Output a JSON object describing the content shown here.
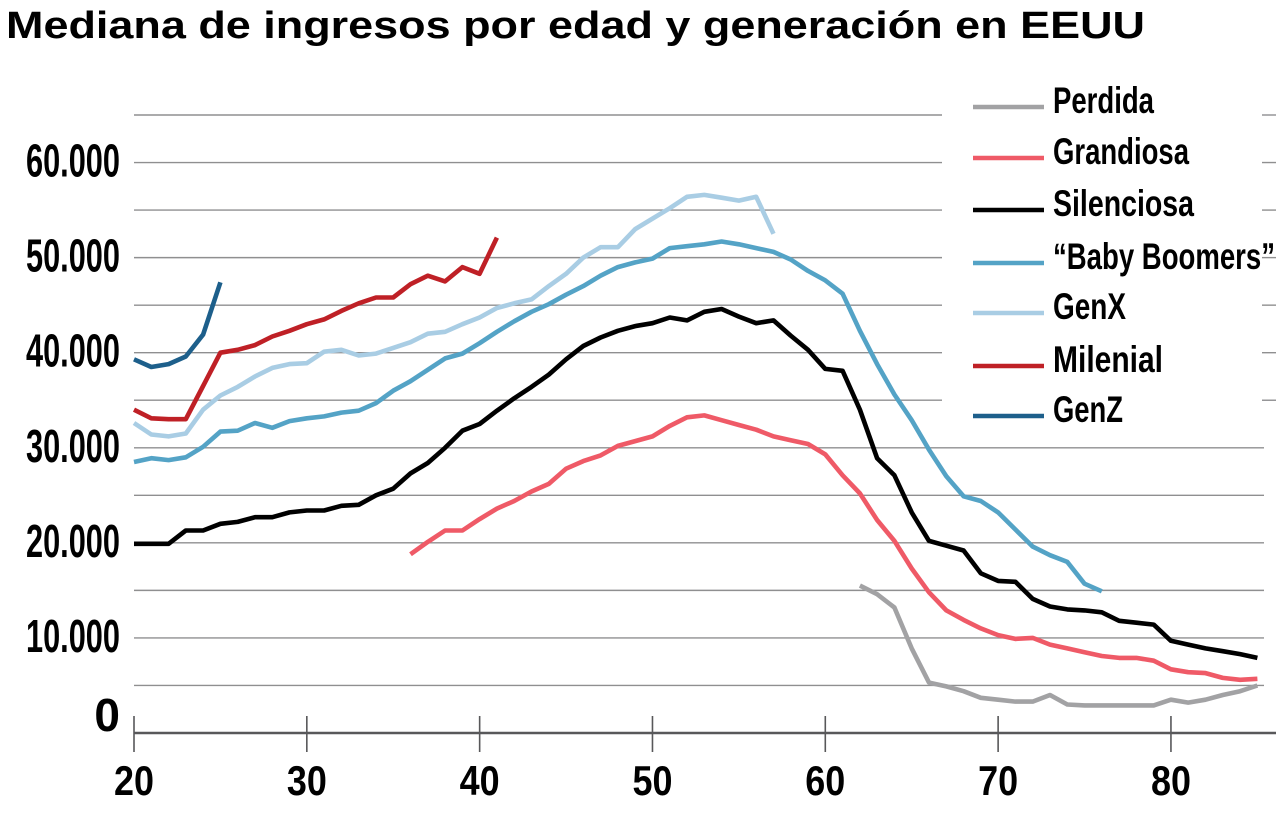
{
  "title": "Mediana de ingresos por edad y generación en EEUU",
  "colors": {
    "title": "#226a9b",
    "gridline": "#8f8f90",
    "axis": "#58585a",
    "tick_label": "#000000",
    "legend_label": "#000000",
    "background": "#ffffff"
  },
  "chart_data": {
    "type": "line",
    "title": "Mediana de ingresos por edad y generación en EEUU",
    "xlabel": "",
    "ylabel": "",
    "xlim": [
      20,
      85.5
    ],
    "ylim": [
      0,
      65000
    ],
    "grid_step": 5000,
    "grid": "horizontal",
    "legend_position": "top-right",
    "x_ticks": [
      20,
      30,
      40,
      50,
      60,
      70,
      80
    ],
    "x_tick_labels": [
      "20",
      "30",
      "40",
      "50",
      "60",
      "70",
      "80"
    ],
    "y_ticks": [
      0,
      10000,
      20000,
      30000,
      40000,
      50000,
      60000
    ],
    "y_tick_labels": [
      "0",
      "10.000",
      "20.000",
      "30.000",
      "40.000",
      "50.000",
      "60.000"
    ],
    "legend": [
      "Perdida",
      "Grandiosa",
      "Silenciosa",
      "“Baby Boomers”",
      "GenX",
      "Milenial",
      "GenZ"
    ],
    "series": [
      {
        "name": "Perdida",
        "color": "#a2a2a4",
        "start_age": 62,
        "values": [
          15500,
          14600,
          13200,
          8900,
          5300,
          4900,
          4400,
          3700,
          3500,
          3300,
          3300,
          4000,
          3000,
          2900,
          2900,
          2900,
          2900,
          2900,
          3500,
          3200,
          3500,
          4000,
          4400,
          5000
        ]
      },
      {
        "name": "Grandiosa",
        "color": "#ef5a67",
        "start_age": 36,
        "values": [
          18800,
          20100,
          21300,
          21300,
          22500,
          23600,
          24400,
          25400,
          26200,
          27800,
          28600,
          29200,
          30200,
          30700,
          31200,
          32300,
          33200,
          33400,
          32900,
          32400,
          31900,
          31200,
          30800,
          30400,
          29300,
          27100,
          25200,
          22400,
          20200,
          17300,
          14800,
          12900,
          11900,
          11000,
          10300,
          9900,
          10000,
          9300,
          8900,
          8500,
          8100,
          7900,
          7900,
          7600,
          6700,
          6400,
          6300,
          5800,
          5600,
          5700
        ]
      },
      {
        "name": "Silenciosa",
        "color": "#000000",
        "start_age": 20,
        "values": [
          19900,
          19900,
          19900,
          21300,
          21300,
          22000,
          22200,
          22700,
          22700,
          23200,
          23400,
          23400,
          23900,
          24000,
          25000,
          25700,
          27300,
          28400,
          30000,
          31800,
          32500,
          33900,
          35200,
          36400,
          37700,
          39300,
          40700,
          41600,
          42300,
          42800,
          43100,
          43700,
          43400,
          44300,
          44600,
          43800,
          43100,
          43400,
          41800,
          40300,
          38300,
          38100,
          34000,
          28900,
          27100,
          23200,
          20200,
          19700,
          19200,
          16800,
          16000,
          15900,
          14100,
          13300,
          13000,
          12900,
          12700,
          11800,
          11600,
          11400,
          9700,
          9300,
          8900,
          8600,
          8300,
          7900
        ]
      },
      {
        "name": "“Baby Boomers”",
        "color": "#54a3c6",
        "start_age": 20,
        "values": [
          28500,
          28900,
          28700,
          29000,
          30100,
          31700,
          31800,
          32600,
          32100,
          32800,
          33100,
          33300,
          33700,
          33900,
          34700,
          36000,
          37000,
          38200,
          39400,
          39900,
          41000,
          42200,
          43300,
          44300,
          45100,
          46100,
          47000,
          48100,
          49000,
          49500,
          49900,
          51000,
          51200,
          51400,
          51700,
          51400,
          51000,
          50600,
          49800,
          48600,
          47600,
          46200,
          42300,
          38800,
          35600,
          32900,
          29800,
          27000,
          24900,
          24400,
          23200,
          21400,
          19600,
          18700,
          18000,
          15700,
          14900
        ]
      },
      {
        "name": "GenX",
        "color": "#a9cde4",
        "start_age": 20,
        "values": [
          32600,
          31400,
          31200,
          31500,
          34000,
          35500,
          36400,
          37500,
          38400,
          38800,
          38900,
          40100,
          40300,
          39700,
          39900,
          40500,
          41100,
          42000,
          42200,
          43000,
          43700,
          44700,
          45200,
          45600,
          47000,
          48300,
          50000,
          51100,
          51100,
          53000,
          54100,
          55200,
          56400,
          56600,
          56300,
          56000,
          56400,
          52500
        ]
      },
      {
        "name": "Milenial",
        "color": "#bf2026",
        "start_age": 20,
        "values": [
          34000,
          33100,
          33000,
          33000,
          36500,
          40000,
          40300,
          40800,
          41700,
          42300,
          43000,
          43500,
          44400,
          45200,
          45800,
          45800,
          47200,
          48100,
          47500,
          49000,
          48300,
          52100
        ]
      },
      {
        "name": "GenZ",
        "color": "#1d5f8b",
        "start_age": 20,
        "values": [
          39300,
          38500,
          38800,
          39600,
          41900,
          47400
        ]
      }
    ]
  }
}
